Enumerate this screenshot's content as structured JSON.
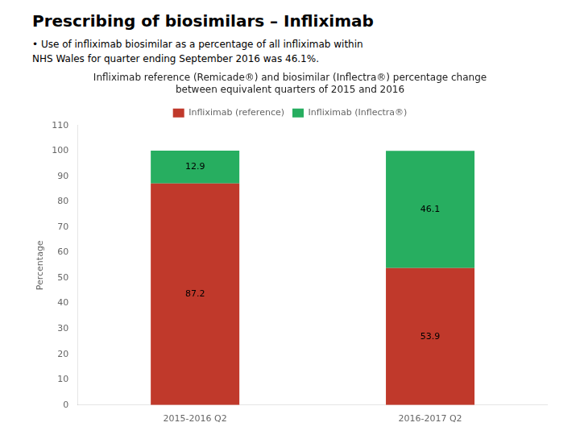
{
  "chart_data": {
    "type": "bar",
    "title": "Prescribing of biosimilars – Infliximab",
    "subtitle": "Infliximab reference (Remicade®) and biosimilar (Inflectra®) percentage change\nbetween equivalent quarters of 2015 and 2016",
    "annotations": [
      "• Use of infliximab biosimilar as a percentage of all infliximab within\nNHS Wales for quarter ending September 2016 was 46.1%."
    ],
    "categories": [
      "2015-2016 Q2",
      "2016-2017 Q2"
    ],
    "series": [
      {
        "name": "Infliximab (reference)",
        "color": "#C0392B",
        "values": [
          87.2,
          53.9
        ]
      },
      {
        "name": "Infliximab (Inflectra®)",
        "color": "#27AE60",
        "values": [
          12.9,
          46.1
        ]
      }
    ],
    "stacked": true,
    "data_labels": true,
    "ylabel": "Percentage",
    "ylim": [
      0,
      110
    ],
    "yticks": [
      0,
      10,
      20,
      30,
      40,
      50,
      60,
      70,
      80,
      90,
      100,
      110
    ],
    "grid": false,
    "legend": "top"
  }
}
